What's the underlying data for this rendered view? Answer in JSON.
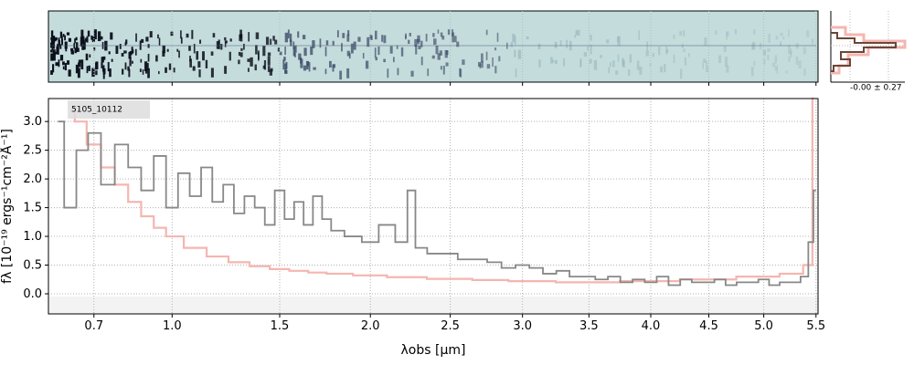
{
  "chart_data": [
    {
      "type": "heatmap",
      "panel": "2d-spectrum",
      "description_colors": {
        "background": "#c5dcdc",
        "dark": "#1a2840"
      }
    },
    {
      "type": "line",
      "panel": "1d-spectrum",
      "object_id": "5105_10112",
      "xlabel": "λobs [μm]",
      "ylabel": "fλ [10⁻¹⁹ ergs⁻¹cm⁻²Å⁻¹]",
      "xscale": "sqrt",
      "xlim": [
        0.55,
        5.52
      ],
      "ylim": [
        -0.35,
        3.4
      ],
      "x_ticks": [
        0.7,
        1.0,
        1.5,
        2.0,
        2.5,
        3.0,
        3.5,
        4.0,
        4.5,
        5.0,
        5.5
      ],
      "x_tick_labels": [
        "0.7",
        "1.0",
        "1.5",
        "2.0",
        "2.5",
        "3.0",
        "3.5",
        "4.0",
        "4.5",
        "5.0",
        "5.5"
      ],
      "y_ticks": [
        0.0,
        0.5,
        1.0,
        1.5,
        2.0,
        2.5,
        3.0
      ],
      "y_tick_labels": [
        "0.0",
        "0.5",
        "1.0",
        "1.5",
        "2.0",
        "2.5",
        "3.0"
      ],
      "grid": true,
      "series": [
        {
          "role": "flux",
          "color": "#888888",
          "style": "steps",
          "x": [
            0.58,
            0.62,
            0.66,
            0.7,
            0.75,
            0.8,
            0.85,
            0.9,
            0.95,
            1.0,
            1.05,
            1.1,
            1.15,
            1.2,
            1.25,
            1.3,
            1.35,
            1.4,
            1.45,
            1.5,
            1.55,
            1.6,
            1.65,
            1.7,
            1.75,
            1.8,
            1.9,
            2.0,
            2.1,
            2.2,
            2.25,
            2.3,
            2.4,
            2.5,
            2.6,
            2.7,
            2.8,
            2.9,
            3.0,
            3.1,
            3.2,
            3.3,
            3.4,
            3.5,
            3.6,
            3.7,
            3.8,
            3.9,
            4.0,
            4.1,
            4.2,
            4.3,
            4.4,
            4.5,
            4.6,
            4.7,
            4.8,
            4.9,
            5.0,
            5.1,
            5.2,
            5.3,
            5.4,
            5.45,
            5.5
          ],
          "y": [
            3.0,
            1.5,
            2.5,
            2.8,
            1.9,
            2.6,
            2.2,
            1.8,
            2.4,
            1.5,
            2.1,
            1.7,
            2.2,
            1.6,
            1.9,
            1.4,
            1.7,
            1.5,
            1.2,
            1.8,
            1.3,
            1.6,
            1.2,
            1.7,
            1.3,
            1.1,
            1.0,
            0.9,
            1.2,
            0.9,
            1.8,
            0.8,
            0.7,
            0.7,
            0.6,
            0.6,
            0.55,
            0.45,
            0.5,
            0.45,
            0.35,
            0.4,
            0.3,
            0.3,
            0.25,
            0.3,
            0.2,
            0.25,
            0.2,
            0.3,
            0.15,
            0.25,
            0.2,
            0.2,
            0.25,
            0.15,
            0.2,
            0.2,
            0.25,
            0.15,
            0.2,
            0.2,
            0.3,
            0.9,
            1.8
          ]
        },
        {
          "role": "model",
          "color": "#f4b6b0",
          "style": "steps",
          "x": [
            0.62,
            0.65,
            0.7,
            0.75,
            0.8,
            0.85,
            0.9,
            0.95,
            1.0,
            1.1,
            1.2,
            1.3,
            1.4,
            1.5,
            1.6,
            1.7,
            1.8,
            2.0,
            2.2,
            2.5,
            2.8,
            3.0,
            3.5,
            4.0,
            4.5,
            5.0,
            5.3,
            5.45,
            5.48
          ],
          "y": [
            3.2,
            3.0,
            2.6,
            2.2,
            1.9,
            1.6,
            1.35,
            1.15,
            1.0,
            0.8,
            0.65,
            0.55,
            0.48,
            0.43,
            0.4,
            0.37,
            0.35,
            0.32,
            0.29,
            0.26,
            0.24,
            0.22,
            0.2,
            0.22,
            0.25,
            0.3,
            0.35,
            0.5,
            3.4
          ]
        }
      ]
    },
    {
      "type": "line",
      "panel": "spatial-profile",
      "annotation": "-0.00 ± 0.27"
    }
  ]
}
